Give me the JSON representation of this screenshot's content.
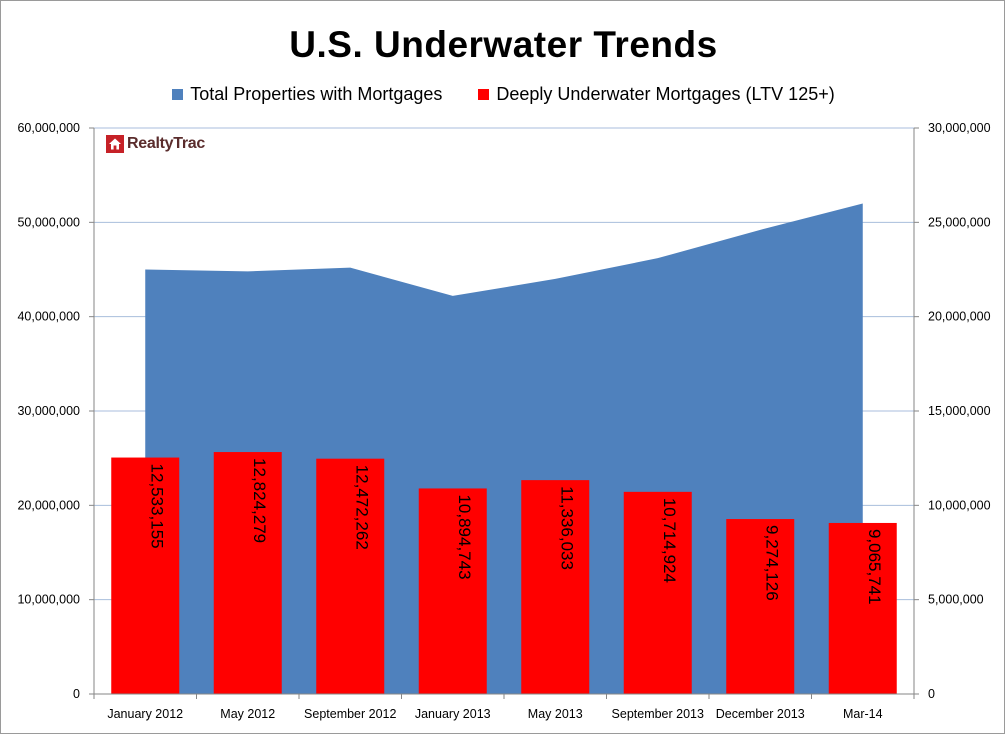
{
  "chart_data": {
    "type": "bar",
    "title": "U.S. Underwater Trends",
    "categories": [
      "January 2012",
      "May 2012",
      "September 2012",
      "January 2013",
      "May 2013",
      "September 2013",
      "December 2013",
      "Mar-14"
    ],
    "series": [
      {
        "name": "Total Properties with Mortgages",
        "chart": "area",
        "axis": "left",
        "color": "#4f81bd",
        "values": [
          45000000,
          44800000,
          45200000,
          42200000,
          44000000,
          46200000,
          49200000,
          52000000
        ]
      },
      {
        "name": "Deeply Underwater Mortgages (LTV 125+)",
        "chart": "bar",
        "axis": "right",
        "color": "#ff0000",
        "values": [
          12533155,
          12824279,
          12472262,
          10894743,
          11336033,
          10714924,
          9274126,
          9065741
        ],
        "data_labels": [
          "12,533,155",
          "12,824,279",
          "12,472,262",
          "10,894,743",
          "11,336,033",
          "10,714,924",
          "9,274,126",
          "9,065,741"
        ]
      }
    ],
    "left_axis": {
      "ylim": [
        0,
        60000000
      ],
      "ticks": [
        "0",
        "10,000,000",
        "20,000,000",
        "30,000,000",
        "40,000,000",
        "50,000,000",
        "60,000,000"
      ]
    },
    "right_axis": {
      "ylim": [
        0,
        30000000
      ],
      "ticks": [
        "0",
        "5,000,000",
        "10,000,000",
        "15,000,000",
        "20,000,000",
        "25,000,000",
        "30,000,000"
      ]
    },
    "grid": true,
    "legend_position": "top"
  },
  "logo": {
    "text": "RealtyTrac"
  }
}
